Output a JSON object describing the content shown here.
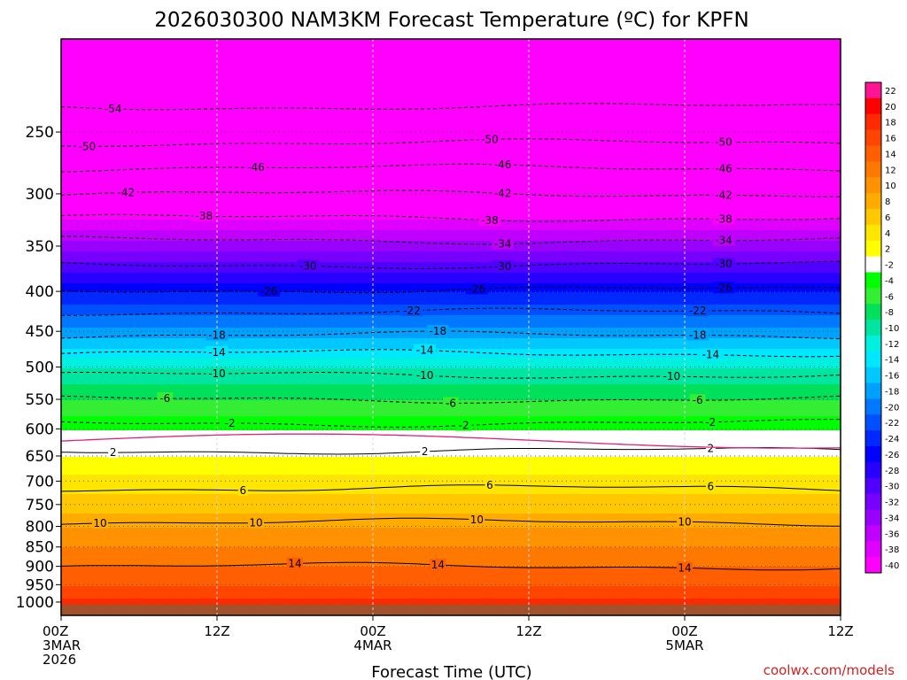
{
  "chart_data": {
    "type": "heatmap",
    "title": "2026030300 NAM3KM Forecast Temperature (ºC) for KPFN",
    "xlabel": "Forecast Time (UTC)",
    "ylabel": "",
    "credit": "coolwx.com/models",
    "x_ticks": [
      {
        "hours": 0,
        "lines": [
          "00Z",
          "3MAR",
          "2026"
        ]
      },
      {
        "hours": 12,
        "lines": [
          "12Z"
        ]
      },
      {
        "hours": 24,
        "lines": [
          "00Z",
          "4MAR"
        ]
      },
      {
        "hours": 36,
        "lines": [
          "12Z"
        ]
      },
      {
        "hours": 48,
        "lines": [
          "00Z",
          "5MAR"
        ]
      },
      {
        "hours": 60,
        "lines": [
          "12Z"
        ]
      }
    ],
    "xlim_hours": [
      0,
      60
    ],
    "y_axis": {
      "log_scale": true,
      "ylim_hPa": [
        1040,
        190
      ],
      "ticks": [
        250,
        300,
        350,
        400,
        450,
        500,
        550,
        600,
        650,
        700,
        750,
        800,
        850,
        900,
        950,
        1000
      ]
    },
    "grid": true,
    "colorbar": {
      "placement": "right",
      "labels": [
        "22",
        "20",
        "18",
        "16",
        "14",
        "12",
        "10",
        "8",
        "6",
        "4",
        "2",
        "-2",
        "-4",
        "-6",
        "-8",
        "-10",
        "-12",
        "-14",
        "-16",
        "-18",
        "-20",
        "-22",
        "-24",
        "-26",
        "-28",
        "-30",
        "-32",
        "-34",
        "-36",
        "-38",
        "-40"
      ],
      "colors": [
        "#ff1493",
        "#ff0000",
        "#ff2a00",
        "#ff4500",
        "#ff5f00",
        "#ff7800",
        "#ff9200",
        "#ffab00",
        "#ffc800",
        "#ffe600",
        "#ffff00",
        "#ffffff",
        "#00ff00",
        "#33ee33",
        "#00e05a",
        "#00e6a0",
        "#00f0e0",
        "#00e8ff",
        "#00c8ff",
        "#00a0ff",
        "#0078ff",
        "#0050ff",
        "#0028ff",
        "#0000ff",
        "#2800ff",
        "#5000ff",
        "#7800ff",
        "#9a00ff",
        "#c000ff",
        "#e000ff",
        "#ff00ff"
      ]
    },
    "temperature_profile_C": [
      {
        "p": 1020,
        "t": 20
      },
      {
        "p": 950,
        "t": 16
      },
      {
        "p": 900,
        "t": 14
      },
      {
        "p": 850,
        "t": 12
      },
      {
        "p": 800,
        "t": 10
      },
      {
        "p": 750,
        "t": 7
      },
      {
        "p": 700,
        "t": 5
      },
      {
        "p": 650,
        "t": 2
      },
      {
        "p": 620,
        "t": 0
      },
      {
        "p": 600,
        "t": -2
      },
      {
        "p": 550,
        "t": -6
      },
      {
        "p": 500,
        "t": -10
      },
      {
        "p": 450,
        "t": -17
      },
      {
        "p": 400,
        "t": -24
      },
      {
        "p": 350,
        "t": -33
      },
      {
        "p": 300,
        "t": -42
      },
      {
        "p": 250,
        "t": -51
      },
      {
        "p": 200,
        "t": -56
      }
    ],
    "contours_C": [
      {
        "value": -54,
        "p": 232,
        "labels_hours": [
          4
        ]
      },
      {
        "value": -50,
        "p": 258,
        "labels_hours": [
          2,
          33,
          51
        ]
      },
      {
        "value": -46,
        "p": 278,
        "labels_hours": [
          15,
          34,
          51
        ]
      },
      {
        "value": -42,
        "p": 300,
        "labels_hours": [
          5,
          34,
          51
        ]
      },
      {
        "value": -38,
        "p": 322,
        "labels_hours": [
          11,
          33,
          51
        ]
      },
      {
        "value": -34,
        "p": 344,
        "labels_hours": [
          34,
          51
        ]
      },
      {
        "value": -30,
        "p": 370,
        "labels_hours": [
          19,
          34,
          51
        ]
      },
      {
        "value": -26,
        "p": 398,
        "labels_hours": [
          16,
          32,
          51
        ]
      },
      {
        "value": -22,
        "p": 425,
        "labels_hours": [
          27,
          49
        ]
      },
      {
        "value": -18,
        "p": 455,
        "labels_hours": [
          12,
          29,
          49
        ]
      },
      {
        "value": -14,
        "p": 480,
        "labels_hours": [
          12,
          28,
          50
        ]
      },
      {
        "value": -10,
        "p": 512,
        "labels_hours": [
          12,
          28,
          47
        ]
      },
      {
        "value": -6,
        "p": 550,
        "labels_hours": [
          8,
          30,
          49
        ]
      },
      {
        "value": -2,
        "p": 590,
        "labels_hours": [
          13,
          31,
          50
        ]
      },
      {
        "value": 2,
        "p": 640,
        "labels_hours": [
          4,
          28,
          50
        ]
      },
      {
        "value": 6,
        "p": 715,
        "labels_hours": [
          14,
          33,
          50
        ]
      },
      {
        "value": 10,
        "p": 790,
        "labels_hours": [
          3,
          15,
          32,
          48
        ]
      },
      {
        "value": 14,
        "p": 900,
        "labels_hours": [
          18,
          29,
          48
        ]
      }
    ],
    "zero_line_p": 622
  }
}
